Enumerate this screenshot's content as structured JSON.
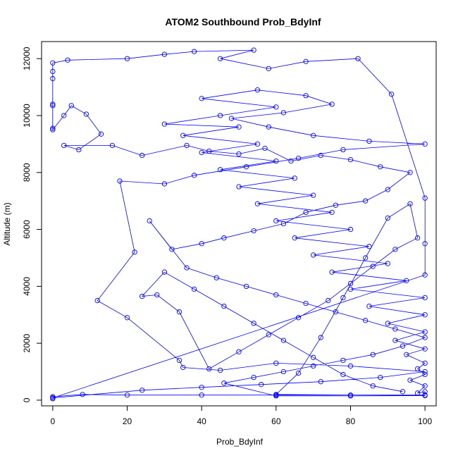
{
  "chart_data": {
    "type": "scatter",
    "title": "ATOM2 Southbound Prob_BdyInf",
    "xlabel": "Prob_BdyInf",
    "ylabel": "Altitude (m)",
    "xlim": [
      -3,
      103
    ],
    "ylim": [
      -200,
      12600
    ],
    "xticks": [
      0,
      20,
      40,
      60,
      80,
      100
    ],
    "yticks": [
      0,
      2000,
      4000,
      6000,
      8000,
      10000,
      12000
    ],
    "grid": false,
    "line_color": "#0000FF",
    "series": [
      {
        "points": [
          [
            0,
            50
          ],
          [
            0,
            120
          ],
          [
            8,
            200
          ],
          [
            20,
            180
          ],
          [
            40,
            180
          ],
          [
            60,
            180
          ],
          [
            80,
            180
          ],
          [
            100,
            180
          ],
          [
            100,
            300
          ],
          [
            98,
            250
          ],
          [
            100,
            500
          ],
          [
            96,
            700
          ],
          [
            100,
            900
          ],
          [
            98,
            1100
          ],
          [
            100,
            1300
          ],
          [
            95,
            1600
          ],
          [
            100,
            1800
          ],
          [
            92,
            2100
          ],
          [
            100,
            2400
          ],
          [
            90,
            2700
          ],
          [
            100,
            3000
          ],
          [
            85,
            3300
          ],
          [
            100,
            3600
          ],
          [
            80,
            3900
          ],
          [
            95,
            4200
          ],
          [
            75,
            4500
          ],
          [
            90,
            4800
          ],
          [
            70,
            5100
          ],
          [
            85,
            5400
          ],
          [
            65,
            5700
          ],
          [
            80,
            6000
          ],
          [
            60,
            6300
          ],
          [
            75,
            6600
          ],
          [
            55,
            6900
          ],
          [
            70,
            7200
          ],
          [
            50,
            7500
          ],
          [
            65,
            7800
          ],
          [
            45,
            8100
          ],
          [
            60,
            8400
          ],
          [
            40,
            8700
          ],
          [
            55,
            9000
          ],
          [
            35,
            9300
          ],
          [
            50,
            9600
          ],
          [
            30,
            9700
          ],
          [
            45,
            10000
          ],
          [
            60,
            10300
          ],
          [
            40,
            10600
          ],
          [
            55,
            10900
          ],
          [
            68,
            10700
          ],
          [
            75,
            10400
          ],
          [
            62,
            10100
          ],
          [
            48,
            9900
          ],
          [
            58,
            9600
          ],
          [
            70,
            9300
          ],
          [
            85,
            9100
          ],
          [
            100,
            9000
          ],
          [
            78,
            8800
          ],
          [
            66,
            8500
          ],
          [
            52,
            8200
          ],
          [
            38,
            7900
          ],
          [
            30,
            7600
          ],
          [
            18,
            7700
          ],
          [
            22,
            5200
          ],
          [
            12,
            3500
          ],
          [
            20,
            2900
          ],
          [
            34,
            1400
          ],
          [
            35,
            1150
          ],
          [
            45,
            1050
          ],
          [
            60,
            1300
          ],
          [
            80,
            1200
          ],
          [
            100,
            1000
          ],
          [
            88,
            800
          ],
          [
            72,
            650
          ],
          [
            56,
            550
          ],
          [
            40,
            450
          ],
          [
            24,
            350
          ],
          [
            0,
            80
          ],
          [
            100,
            4400
          ],
          [
            100,
            5500
          ],
          [
            100,
            7100
          ],
          [
            91,
            10750
          ],
          [
            82,
            12000
          ],
          [
            68,
            11900
          ],
          [
            58,
            11650
          ],
          [
            45,
            12000
          ],
          [
            54,
            12300
          ],
          [
            38,
            12250
          ],
          [
            30,
            12150
          ],
          [
            20,
            12000
          ],
          [
            4,
            11950
          ],
          [
            0,
            11850
          ],
          [
            0,
            11550
          ],
          [
            0,
            11300
          ],
          [
            0,
            10400
          ],
          [
            0,
            10350
          ],
          [
            0,
            9550
          ],
          [
            0,
            9500
          ],
          [
            3,
            10000
          ],
          [
            5,
            10350
          ],
          [
            9,
            10050
          ],
          [
            13,
            9350
          ],
          [
            7,
            8800
          ],
          [
            3,
            8950
          ],
          [
            16,
            8950
          ],
          [
            24,
            8600
          ],
          [
            36,
            8950
          ],
          [
            42,
            8750
          ],
          [
            50,
            8650
          ],
          [
            57,
            8850
          ],
          [
            64,
            8400
          ],
          [
            72,
            8600
          ],
          [
            80,
            8450
          ],
          [
            88,
            8200
          ],
          [
            96,
            8000
          ],
          [
            90,
            7400
          ],
          [
            84,
            7000
          ],
          [
            76,
            6850
          ],
          [
            68,
            6600
          ],
          [
            62,
            6200
          ],
          [
            54,
            5950
          ],
          [
            46,
            5700
          ],
          [
            40,
            5500
          ],
          [
            32,
            5300
          ],
          [
            26,
            6300
          ],
          [
            36,
            4650
          ],
          [
            44,
            4300
          ],
          [
            52,
            4000
          ],
          [
            60,
            3700
          ],
          [
            68,
            3400
          ],
          [
            76,
            3100
          ],
          [
            84,
            2800
          ],
          [
            92,
            2500
          ],
          [
            100,
            2200
          ],
          [
            94,
            1900
          ],
          [
            86,
            1600
          ],
          [
            78,
            1400
          ],
          [
            70,
            1200
          ],
          [
            62,
            1000
          ],
          [
            54,
            800
          ],
          [
            46,
            600
          ],
          [
            60,
            150
          ],
          [
            80,
            150
          ],
          [
            100,
            160
          ],
          [
            60,
            200
          ],
          [
            66,
            950
          ],
          [
            72,
            2200
          ],
          [
            78,
            3600
          ],
          [
            84,
            5000
          ],
          [
            90,
            6400
          ],
          [
            96,
            6900
          ],
          [
            98,
            5700
          ],
          [
            92,
            5300
          ],
          [
            86,
            4700
          ],
          [
            80,
            4100
          ],
          [
            74,
            3500
          ],
          [
            66,
            2900
          ],
          [
            58,
            2300
          ],
          [
            50,
            1700
          ],
          [
            42,
            1100
          ],
          [
            34,
            3100
          ],
          [
            28,
            3700
          ],
          [
            24,
            3650
          ],
          [
            30,
            4500
          ],
          [
            38,
            3900
          ],
          [
            46,
            3300
          ],
          [
            54,
            2700
          ],
          [
            62,
            2100
          ],
          [
            70,
            1500
          ],
          [
            78,
            900
          ],
          [
            86,
            500
          ],
          [
            94,
            300
          ]
        ]
      }
    ]
  }
}
